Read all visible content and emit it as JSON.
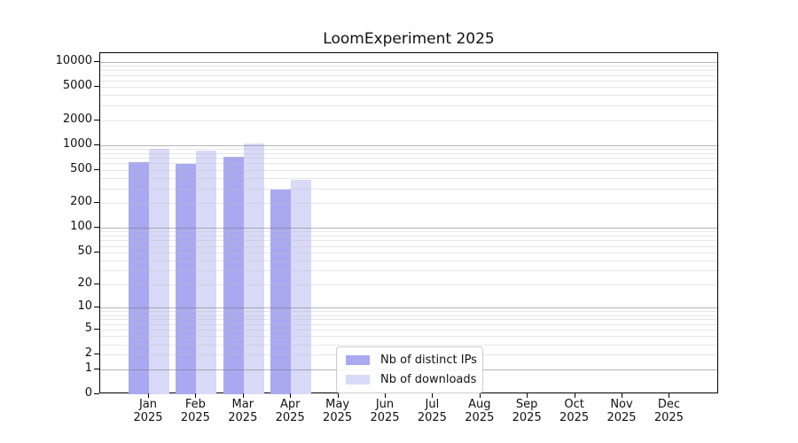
{
  "title": "LoomExperiment 2025",
  "chart_data": {
    "type": "bar",
    "title": "LoomExperiment 2025",
    "subtitle": "",
    "categories": [
      "Jan 2025",
      "Feb 2025",
      "Mar 2025",
      "Apr 2025",
      "May 2025",
      "Jun 2025",
      "Jul 2025",
      "Aug 2025",
      "Sep 2025",
      "Oct 2025",
      "Nov 2025",
      "Dec 2025"
    ],
    "month_labels": [
      "Jan",
      "Feb",
      "Mar",
      "Apr",
      "May",
      "Jun",
      "Jul",
      "Aug",
      "Sep",
      "Oct",
      "Nov",
      "Dec"
    ],
    "year_label": "2025",
    "series": [
      {
        "name": "Nb of distinct IPs",
        "color": "#a9a9f1",
        "values": [
          620,
          590,
          720,
          290,
          0,
          0,
          0,
          0,
          0,
          0,
          0,
          0
        ]
      },
      {
        "name": "Nb of downloads",
        "color": "#d9d9f8",
        "values": [
          900,
          860,
          1040,
          380,
          0,
          0,
          0,
          0,
          0,
          0,
          0,
          0
        ]
      }
    ],
    "xlabel": "",
    "ylabel": "",
    "yscale": "log10(1+y)",
    "yticks": [
      0,
      1,
      2,
      5,
      10,
      20,
      50,
      100,
      200,
      500,
      1000,
      2000,
      5000,
      10000
    ],
    "ylim": [
      0,
      12800
    ],
    "grid": "horizontal, minor log gridlines, drawn over bars",
    "legend_position": "inside bottom-center"
  },
  "colors": {
    "background": "#ffffff",
    "axis": "#000000",
    "major_gridline": "#c0c0c0",
    "minor_gridline": "#ececec",
    "text": "#111111"
  }
}
